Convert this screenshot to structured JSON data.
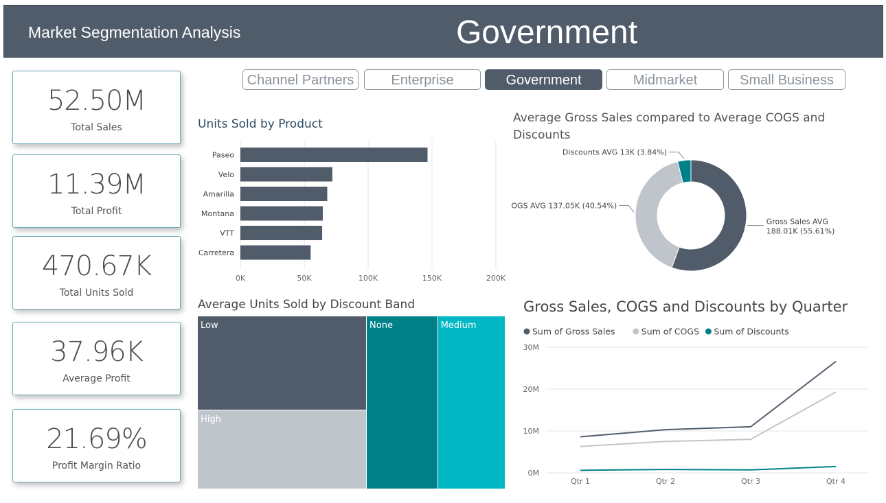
{
  "header": {
    "app_title": "Market Segmentation Analysis",
    "segment_title": "Government",
    "bg": "#515c6b"
  },
  "kpis": [
    {
      "value": "52.50M",
      "label": "Total Sales"
    },
    {
      "value": "11.39M",
      "label": "Total Profit"
    },
    {
      "value": "470.67K",
      "label": "Total Units Sold"
    },
    {
      "value": "37.96K",
      "label": "Average Profit"
    },
    {
      "value": "21.69%",
      "label": "Profit Margin Ratio"
    }
  ],
  "slicer": {
    "options": [
      "Channel Partners",
      "Enterprise",
      "Government",
      "Midmarket",
      "Small Business"
    ],
    "selected": "Government"
  },
  "colors": {
    "dark": "#515c6b",
    "light": "#c0c5cc",
    "teal": "#00818a",
    "cyan": "#00b7c3"
  },
  "chart_data": [
    {
      "type": "bar",
      "orientation": "horizontal",
      "title": "Units Sold by Product",
      "categories": [
        "Paseo",
        "Velo",
        "Amarilla",
        "Montana",
        "VTT",
        "Carretera"
      ],
      "values": [
        146500,
        72000,
        68000,
        64500,
        64000,
        55000
      ],
      "xlim": [
        0,
        200000
      ],
      "xticks": [
        "0K",
        "50K",
        "100K",
        "150K",
        "200K"
      ],
      "grid": true
    },
    {
      "type": "pie",
      "variant": "donut",
      "title": "Average Gross Sales compared to Average COGS and Discounts",
      "slices": [
        {
          "label": "Gross Sales AVG",
          "value": 188.01,
          "value_text": "188.01K (55.61%)",
          "percent": 55.61,
          "color": "#515c6b"
        },
        {
          "label": "COGS AVG",
          "value": 137.05,
          "value_text": "137.05K (40.54%)",
          "percent": 40.54,
          "color": "#c0c5cc"
        },
        {
          "label": "Discounts AVG",
          "value": 13,
          "value_text": "13K (3.84%)",
          "percent": 3.84,
          "color": "#00818a"
        }
      ]
    },
    {
      "type": "heatmap",
      "variant": "treemap",
      "title": "Average Units Sold by Discount Band",
      "items": [
        {
          "label": "Low",
          "value": 1300,
          "color": "#515c6b"
        },
        {
          "label": "High",
          "value": 1100,
          "color": "#c0c5cc"
        },
        {
          "label": "None",
          "value": 1010,
          "color": "#00818a"
        },
        {
          "label": "Medium",
          "value": 960,
          "color": "#00b7c3"
        }
      ]
    },
    {
      "type": "line",
      "title": "Gross Sales, COGS and Discounts by Quarter",
      "x": [
        "Qtr 1",
        "Qtr 2",
        "Qtr 3",
        "Qtr 4"
      ],
      "series": [
        {
          "name": "Sum of Gross Sales",
          "values": [
            8.6,
            10.3,
            11.0,
            26.6
          ],
          "color": "#515c6b"
        },
        {
          "name": "Sum of COGS",
          "values": [
            6.3,
            7.5,
            8.0,
            19.3
          ],
          "color": "#c0c5cc"
        },
        {
          "name": "Sum of Discounts",
          "values": [
            0.6,
            0.8,
            0.7,
            1.5
          ],
          "color": "#00818a"
        }
      ],
      "ylim": [
        0,
        30
      ],
      "yticks": [
        "0M",
        "10M",
        "20M",
        "30M"
      ],
      "legend": "top-left",
      "grid": true
    }
  ]
}
